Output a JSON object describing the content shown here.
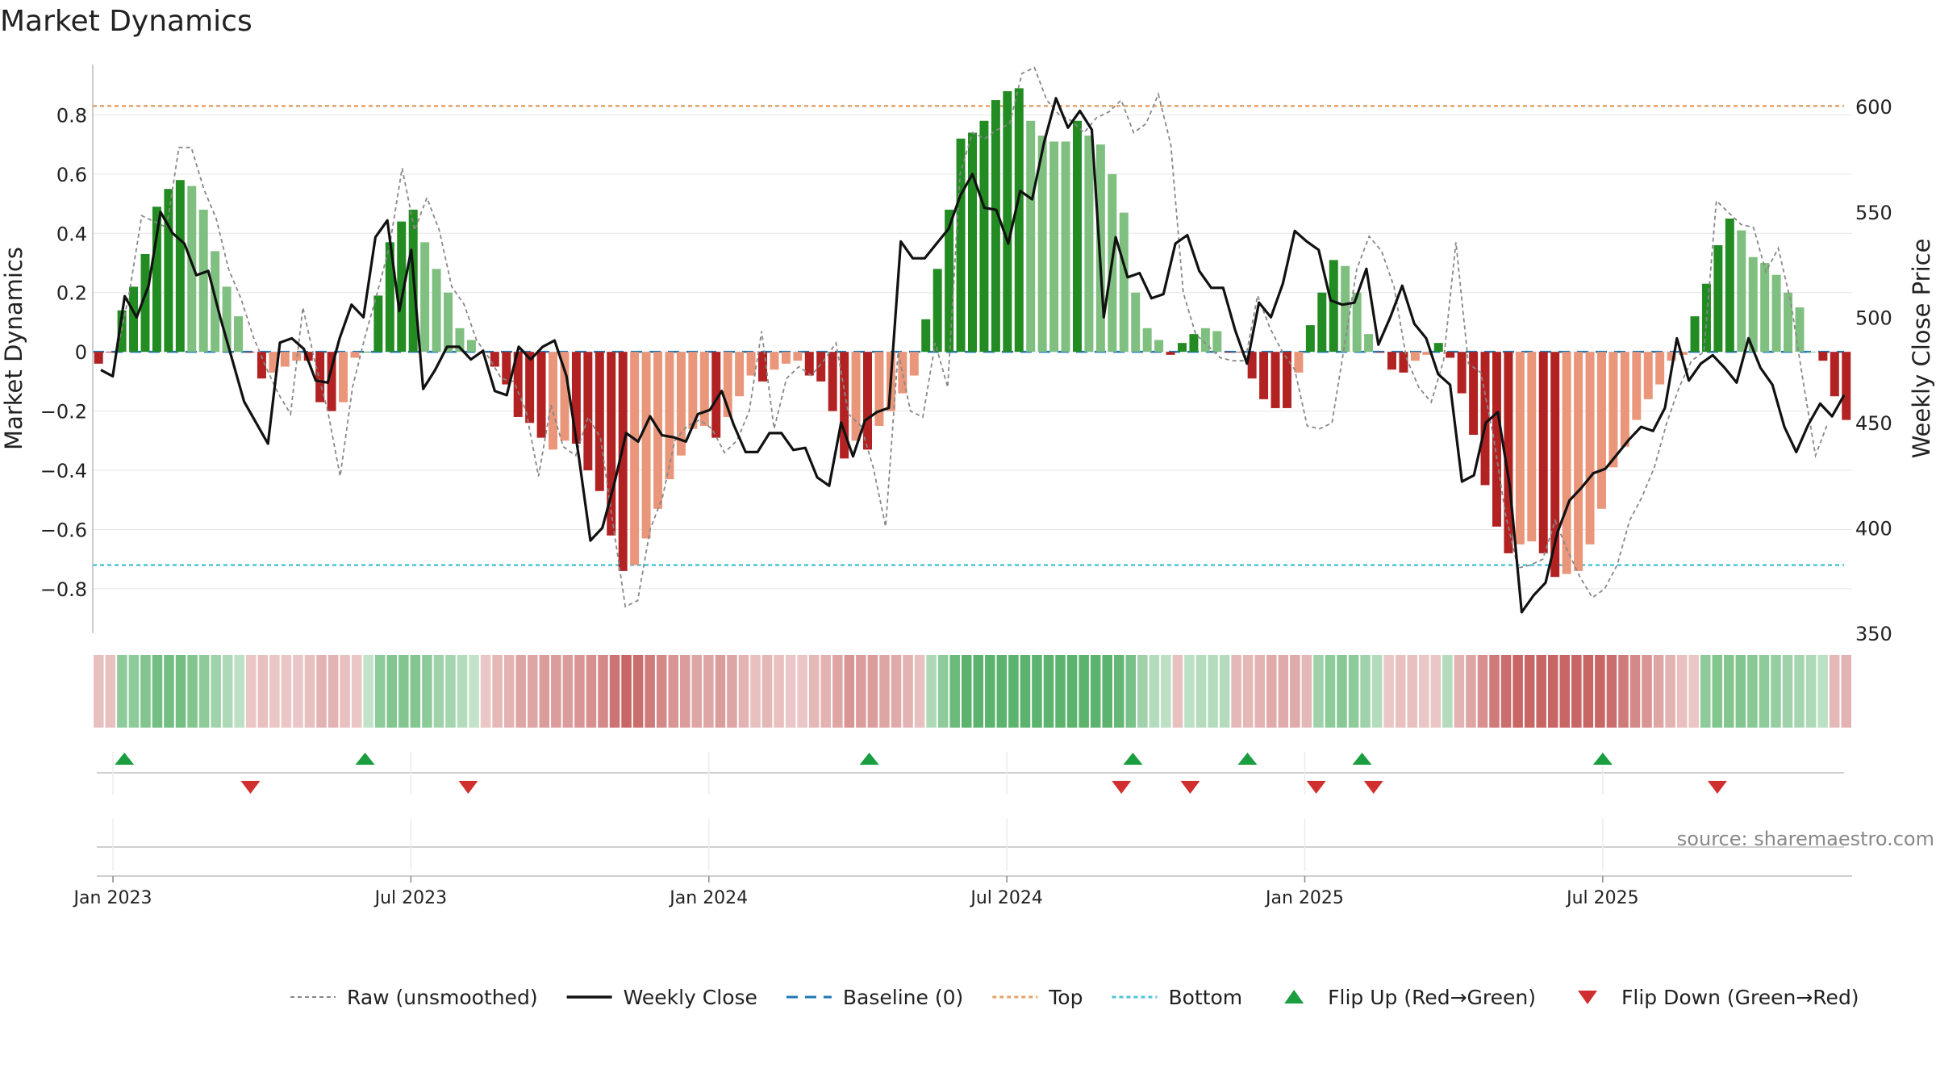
{
  "page": {
    "title": "Market Dynamics",
    "source": "source: sharemaestro.com"
  },
  "colors": {
    "strong_green": "#228b22",
    "light_green": "#7fbf7f",
    "strong_red": "#b22222",
    "light_red": "#e9967a",
    "raw_line": "#888888",
    "close_line": "#111111",
    "baseline": "#1f77b4",
    "top_line": "#e3a26a",
    "bottom_line": "#4fc3d9",
    "flip_up": "#1a9e3f",
    "flip_down": "#d12f2f",
    "grid": "#e6e6e6"
  },
  "legend": {
    "items": [
      {
        "key": "raw",
        "label": "Raw (unsmoothed)"
      },
      {
        "key": "close",
        "label": "Weekly Close"
      },
      {
        "key": "baseline",
        "label": "Baseline (0)"
      },
      {
        "key": "top",
        "label": "Top"
      },
      {
        "key": "bottom",
        "label": "Bottom"
      },
      {
        "key": "flip_up",
        "label": "Flip Up (Red→Green)"
      },
      {
        "key": "flip_down",
        "label": "Flip Down (Green→Red)"
      }
    ]
  },
  "chart_data": {
    "type": "bar",
    "title": "Market Dynamics",
    "ylabel": "Market Dynamics",
    "y2label": "Weekly Close Price",
    "ylim": [
      -0.95,
      0.97
    ],
    "y2lim": [
      350,
      620
    ],
    "yticks": [
      "0.8",
      "0.6",
      "0.4",
      "0.2",
      "0",
      "−0.2",
      "−0.4",
      "−0.6",
      "−0.8"
    ],
    "yticks_values": [
      0.8,
      0.6,
      0.4,
      0.2,
      0,
      -0.2,
      -0.4,
      -0.6,
      -0.8
    ],
    "y2ticks": [
      "600",
      "550",
      "500",
      "450",
      "400",
      "350"
    ],
    "y2ticks_values": [
      600,
      550,
      500,
      450,
      400,
      350
    ],
    "xticks": [
      "Jan 2023",
      "Jul 2023",
      "Jan 2024",
      "Jul 2024",
      "Jan 2025",
      "Jul 2025"
    ],
    "xticks_week": [
      1,
      27,
      53,
      79,
      105,
      131
    ],
    "top_threshold": 0.83,
    "bottom_threshold": -0.72,
    "baseline": 0,
    "grid": true,
    "legend_position": "bottom",
    "values": [
      -0.04,
      0.0,
      0.14,
      0.22,
      0.33,
      0.49,
      0.55,
      0.58,
      0.56,
      0.48,
      0.34,
      0.22,
      0.12,
      0.0,
      -0.09,
      -0.07,
      -0.05,
      -0.03,
      -0.03,
      -0.17,
      -0.2,
      -0.17,
      -0.02,
      0.0,
      0.19,
      0.37,
      0.44,
      0.48,
      0.37,
      0.28,
      0.2,
      0.08,
      0.04,
      0.0,
      -0.05,
      -0.11,
      -0.22,
      -0.24,
      -0.29,
      -0.33,
      -0.3,
      -0.31,
      -0.4,
      -0.47,
      -0.62,
      -0.74,
      -0.72,
      -0.63,
      -0.53,
      -0.43,
      -0.35,
      -0.26,
      -0.25,
      -0.29,
      -0.22,
      -0.15,
      -0.08,
      -0.1,
      -0.06,
      -0.04,
      -0.03,
      -0.08,
      -0.1,
      -0.2,
      -0.36,
      -0.3,
      -0.33,
      -0.25,
      -0.2,
      -0.14,
      -0.08,
      0.11,
      0.28,
      0.48,
      0.72,
      0.74,
      0.78,
      0.85,
      0.88,
      0.89,
      0.78,
      0.73,
      0.71,
      0.71,
      0.78,
      0.73,
      0.7,
      0.6,
      0.47,
      0.2,
      0.08,
      0.04,
      -0.01,
      0.03,
      0.06,
      0.08,
      0.07,
      0.0,
      0.0,
      -0.09,
      -0.16,
      -0.19,
      -0.19,
      -0.07,
      0.09,
      0.2,
      0.31,
      0.29,
      0.2,
      0.06,
      0.0,
      -0.06,
      -0.07,
      -0.03,
      -0.01,
      0.03,
      -0.02,
      -0.14,
      -0.28,
      -0.45,
      -0.59,
      -0.68,
      -0.65,
      -0.64,
      -0.68,
      -0.76,
      -0.75,
      -0.74,
      -0.65,
      -0.53,
      -0.39,
      -0.32,
      -0.23,
      -0.16,
      -0.11,
      -0.03,
      -0.01,
      0.12,
      0.23,
      0.36,
      0.45,
      0.41,
      0.32,
      0.3,
      0.26,
      0.2,
      0.15,
      0.0,
      -0.03,
      -0.15,
      -0.23
    ],
    "colors": [
      "sr",
      "sr",
      "sg",
      "sg",
      "sg",
      "sg",
      "sg",
      "sg",
      "lg",
      "lg",
      "lg",
      "lg",
      "lg",
      "sr",
      "sr",
      "lr",
      "lr",
      "lr",
      "sr",
      "sr",
      "sr",
      "lr",
      "lr",
      "sg",
      "sg",
      "sg",
      "sg",
      "sg",
      "lg",
      "lg",
      "lg",
      "lg",
      "lg",
      "sr",
      "sr",
      "sr",
      "sr",
      "sr",
      "sr",
      "lr",
      "lr",
      "sr",
      "sr",
      "sr",
      "sr",
      "sr",
      "lr",
      "lr",
      "lr",
      "lr",
      "lr",
      "lr",
      "lr",
      "sr",
      "lr",
      "lr",
      "lr",
      "sr",
      "lr",
      "lr",
      "lr",
      "sr",
      "sr",
      "sr",
      "sr",
      "lr",
      "sr",
      "lr",
      "lr",
      "lr",
      "lr",
      "sg",
      "sg",
      "sg",
      "sg",
      "sg",
      "sg",
      "sg",
      "sg",
      "sg",
      "lg",
      "lg",
      "lg",
      "lg",
      "sg",
      "lg",
      "lg",
      "lg",
      "lg",
      "lg",
      "lg",
      "lg",
      "sr",
      "sg",
      "sg",
      "lg",
      "lg",
      "sr",
      "sr",
      "sr",
      "sr",
      "sr",
      "sr",
      "lr",
      "sg",
      "sg",
      "sg",
      "lg",
      "lg",
      "lg",
      "sr",
      "sr",
      "sr",
      "lr",
      "lr",
      "sg",
      "sr",
      "sr",
      "sr",
      "sr",
      "sr",
      "sr",
      "lr",
      "lr",
      "sr",
      "sr",
      "lr",
      "lr",
      "lr",
      "lr",
      "lr",
      "lr",
      "lr",
      "lr",
      "lr",
      "lr",
      "lr",
      "sg",
      "sg",
      "sg",
      "sg",
      "lg",
      "lg",
      "lg",
      "lg",
      "lg",
      "lg",
      "lg",
      "sr",
      "sr",
      "sr"
    ],
    "raw_values": [
      0.0,
      0.2,
      0.46,
      0.44,
      0.42,
      0.69,
      0.69,
      0.55,
      0.45,
      0.28,
      0.18,
      0.05,
      -0.05,
      -0.14,
      -0.21,
      0.15,
      -0.04,
      -0.2,
      -0.42,
      -0.12,
      0.05,
      0.2,
      0.36,
      0.62,
      0.41,
      0.52,
      0.41,
      0.22,
      0.16,
      0.04,
      -0.02,
      -0.09,
      -0.1,
      -0.2,
      -0.42,
      -0.18,
      -0.32,
      -0.35,
      -0.22,
      -0.29,
      -0.58,
      -0.86,
      -0.84,
      -0.6,
      -0.49,
      -0.3,
      -0.25,
      -0.23,
      -0.26,
      -0.34,
      -0.3,
      -0.2,
      0.07,
      -0.26,
      -0.09,
      -0.05,
      -0.08,
      -0.03,
      0.03,
      -0.21,
      -0.25,
      -0.39,
      -0.59,
      0.0,
      -0.2,
      -0.22,
      0.03,
      -0.12,
      0.6,
      0.74,
      0.72,
      0.75,
      0.77,
      0.94,
      0.96,
      0.85,
      0.8,
      0.78,
      0.74,
      0.79,
      0.81,
      0.85,
      0.74,
      0.77,
      0.87,
      0.7,
      0.2,
      0.06,
      0.02,
      -0.02,
      -0.03,
      -0.03,
      0.19,
      0.08,
      0.0,
      -0.06,
      -0.25,
      -0.26,
      -0.24,
      0.02,
      0.28,
      0.39,
      0.34,
      0.22,
      -0.02,
      -0.12,
      -0.17,
      -0.03,
      0.37,
      -0.04,
      -0.07,
      -0.28,
      -0.55,
      -0.73,
      -0.72,
      -0.7,
      -0.57,
      -0.67,
      -0.76,
      -0.83,
      -0.8,
      -0.72,
      -0.57,
      -0.49,
      -0.39,
      -0.24,
      -0.12,
      -0.03,
      0.0,
      0.51,
      0.47,
      0.43,
      0.42,
      0.27,
      0.35,
      0.17,
      -0.1,
      -0.35,
      -0.24
    ],
    "close_values": [
      475,
      472,
      510,
      500,
      515,
      550,
      540,
      535,
      520,
      522,
      500,
      480,
      460,
      450,
      440,
      488,
      490,
      485,
      470,
      469,
      490,
      506,
      500,
      538,
      546,
      503,
      532,
      466,
      475,
      486,
      486,
      480,
      484,
      465,
      463,
      486,
      480,
      486,
      489,
      472,
      435,
      394,
      400,
      421,
      445,
      441,
      453,
      444,
      443,
      441,
      454,
      456,
      465,
      449,
      436,
      436,
      445,
      445,
      437,
      438,
      424,
      420,
      450,
      434,
      451,
      455,
      457,
      536,
      528,
      528,
      535,
      542,
      558,
      568,
      552,
      551,
      535,
      560,
      556,
      583,
      604,
      590,
      598,
      589,
      500,
      538,
      519,
      521,
      509,
      511,
      535,
      539,
      522,
      514,
      514,
      494,
      478,
      507,
      500,
      516,
      541,
      536,
      532,
      508,
      506,
      507,
      523,
      487,
      500,
      515,
      497,
      490,
      473,
      468,
      422,
      425,
      450,
      455,
      420,
      360,
      368,
      374,
      398,
      413,
      419,
      426,
      428,
      435,
      442,
      448,
      446,
      457,
      490,
      470,
      478,
      482,
      476,
      469,
      490,
      476,
      468,
      448,
      436,
      449,
      459,
      453,
      463
    ],
    "heat_strip": [
      0.25,
      0.25,
      0.55,
      0.55,
      0.65,
      0.75,
      0.75,
      0.75,
      0.65,
      0.55,
      0.45,
      0.35,
      0.25,
      0.2,
      0.25,
      0.2,
      0.2,
      0.2,
      0.25,
      0.35,
      0.35,
      0.25,
      0.2,
      0.2,
      0.55,
      0.65,
      0.65,
      0.65,
      0.55,
      0.45,
      0.4,
      0.3,
      0.2,
      0.2,
      0.3,
      0.35,
      0.45,
      0.45,
      0.5,
      0.5,
      0.5,
      0.55,
      0.6,
      0.65,
      0.8,
      0.9,
      0.85,
      0.75,
      0.65,
      0.55,
      0.5,
      0.45,
      0.45,
      0.5,
      0.45,
      0.35,
      0.25,
      0.3,
      0.25,
      0.2,
      0.2,
      0.3,
      0.35,
      0.45,
      0.55,
      0.5,
      0.5,
      0.45,
      0.4,
      0.35,
      0.25,
      0.35,
      0.55,
      0.8,
      0.9,
      0.9,
      0.9,
      0.9,
      0.9,
      0.9,
      0.9,
      0.9,
      0.9,
      0.9,
      0.9,
      0.9,
      0.9,
      0.85,
      0.7,
      0.45,
      0.3,
      0.25,
      0.25,
      0.25,
      0.3,
      0.3,
      0.3,
      0.3,
      0.3,
      0.35,
      0.4,
      0.4,
      0.4,
      0.3,
      0.45,
      0.55,
      0.6,
      0.55,
      0.45,
      0.3,
      0.2,
      0.25,
      0.25,
      0.2,
      0.2,
      0.3,
      0.35,
      0.45,
      0.6,
      0.75,
      0.85,
      0.9,
      0.9,
      0.9,
      0.9,
      0.9,
      0.9,
      0.9,
      0.9,
      0.85,
      0.75,
      0.65,
      0.55,
      0.45,
      0.35,
      0.25,
      0.2,
      0.55,
      0.65,
      0.65,
      0.65,
      0.6,
      0.55,
      0.5,
      0.45,
      0.4,
      0.35,
      0.25,
      0.3,
      0.35
    ],
    "flip_up_weeks": [
      2,
      23,
      67,
      90,
      100,
      110,
      131
    ],
    "flip_down_weeks": [
      13,
      32,
      89,
      95,
      106,
      111,
      141
    ]
  }
}
